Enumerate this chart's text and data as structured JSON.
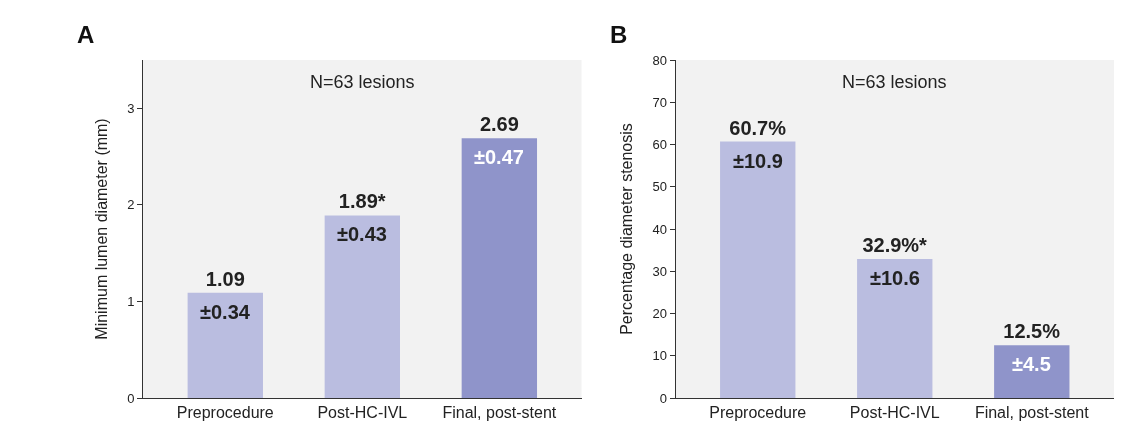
{
  "chart_data": [
    {
      "type": "bar",
      "title": "A",
      "ylabel": "Minimum lumen diameter (mm)",
      "categories": [
        "Preprocedure",
        "Post-HC-IVL",
        "Final, post-stent"
      ],
      "values": [
        1.09,
        1.89,
        2.69
      ],
      "colors": [
        "#babde0",
        "#babde0",
        "#8f94ca"
      ],
      "value_labels": [
        "1.09",
        "1.89*",
        "2.69"
      ],
      "ylim": [
        0,
        3.5
      ],
      "yticks": [
        0,
        1,
        2,
        3
      ],
      "grid": false,
      "annotations": [
        "N=63 lesions",
        "±0.34",
        "±0.43",
        "±0.47"
      ]
    },
    {
      "type": "bar",
      "title": "B",
      "ylabel": "Percentage diameter stenosis",
      "categories": [
        "Preprocedure",
        "Post-HC-IVL",
        "Final, post-stent"
      ],
      "values": [
        60.7,
        32.9,
        12.5
      ],
      "colors": [
        "#babde0",
        "#babde0",
        "#8f94ca"
      ],
      "value_labels": [
        "60.7%",
        "32.9%*",
        "12.5%"
      ],
      "ylim": [
        0,
        80
      ],
      "yticks": [
        0,
        10,
        20,
        30,
        40,
        50,
        60,
        70,
        80
      ],
      "grid": false,
      "annotations": [
        "N=63 lesions",
        "±10.9",
        "±10.6",
        "±4.5"
      ]
    }
  ]
}
